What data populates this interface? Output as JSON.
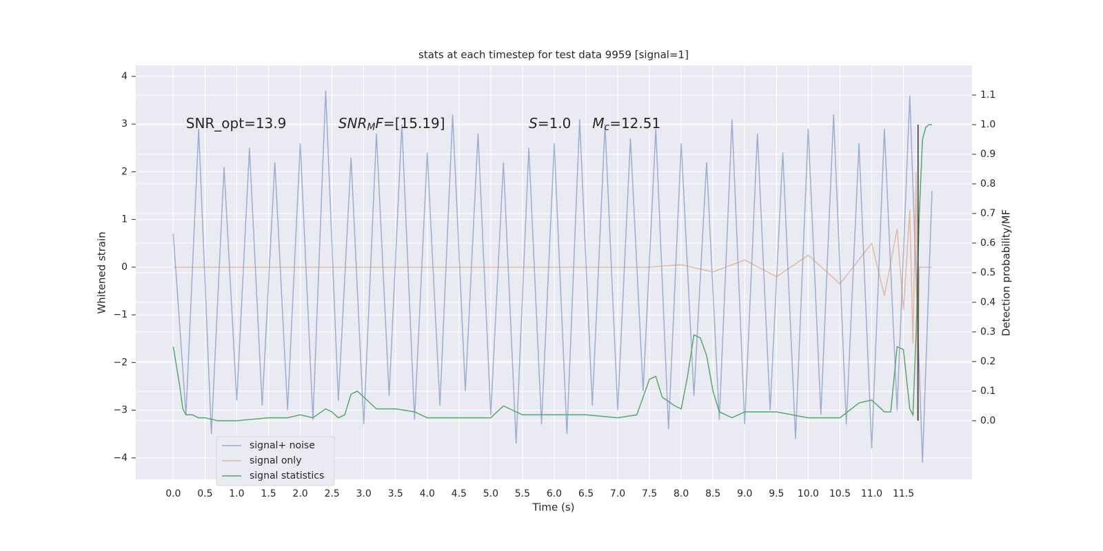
{
  "chart_data": {
    "type": "line",
    "title": "stats at each timestep for test data 9959 [signal=1]",
    "xlabel": "Time (s)",
    "ylabel": "Whitened strain",
    "y2label": "Detection probability/MF",
    "xlim": [
      -0.59,
      12.58
    ],
    "ylim": [
      -4.45,
      4.23
    ],
    "y2lim": [
      -0.198,
      1.2
    ],
    "xticks": [
      {
        "value": 0,
        "label": "0.0"
      },
      {
        "value": 0.5,
        "label": "0.5"
      },
      {
        "value": 1,
        "label": "1.0"
      },
      {
        "value": 1.5,
        "label": "1.5"
      },
      {
        "value": 2,
        "label": "2.0"
      },
      {
        "value": 2.5,
        "label": "2.5"
      },
      {
        "value": 3,
        "label": "3.0"
      },
      {
        "value": 3.5,
        "label": "3.5"
      },
      {
        "value": 4,
        "label": "4.0"
      },
      {
        "value": 4.5,
        "label": "4.5"
      },
      {
        "value": 5,
        "label": "5.0"
      },
      {
        "value": 5.5,
        "label": "5.5"
      },
      {
        "value": 6,
        "label": "6.0"
      },
      {
        "value": 6.5,
        "label": "6.5"
      },
      {
        "value": 7,
        "label": "7.0"
      },
      {
        "value": 7.5,
        "label": "7.5"
      },
      {
        "value": 8,
        "label": "8.0"
      },
      {
        "value": 8.5,
        "label": "8.5"
      },
      {
        "value": 9,
        "label": "9.0"
      },
      {
        "value": 9.5,
        "label": "9.5"
      },
      {
        "value": 10,
        "label": "10.0"
      },
      {
        "value": 10.5,
        "label": "10.5"
      },
      {
        "value": 11,
        "label": "11.0"
      },
      {
        "value": 11.5,
        "label": "11.5"
      }
    ],
    "yticks": [
      {
        "value": -4,
        "label": "−4"
      },
      {
        "value": -3,
        "label": "−3"
      },
      {
        "value": -2,
        "label": "−2"
      },
      {
        "value": -1,
        "label": "−1"
      },
      0,
      1,
      2,
      3,
      4
    ],
    "y2ticks": [
      {
        "value": 0,
        "label": "0.0"
      },
      {
        "value": 0.1,
        "label": "0.1"
      },
      {
        "value": 0.2,
        "label": "0.2"
      },
      {
        "value": 0.3,
        "label": "0.3"
      },
      {
        "value": 0.4,
        "label": "0.4"
      },
      {
        "value": 0.5,
        "label": "0.5"
      },
      {
        "value": 0.6,
        "label": "0.6"
      },
      {
        "value": 0.7,
        "label": "0.7"
      },
      {
        "value": 0.8,
        "label": "0.8"
      },
      {
        "value": 0.9,
        "label": "0.9"
      },
      {
        "value": 1,
        "label": "1.0"
      },
      {
        "value": 1.1,
        "label": "1.1"
      }
    ],
    "grid": true,
    "legend": "lower left",
    "series": [
      {
        "name": "signal+ noise",
        "color": "#4c72b0",
        "alpha": 0.5,
        "x": [
          0,
          0.2,
          0.4,
          0.6,
          0.8,
          1,
          1.2,
          1.4,
          1.6,
          1.8,
          2,
          2.2,
          2.4,
          2.6,
          2.8,
          3,
          3.2,
          3.4,
          3.6,
          3.8,
          4,
          4.2,
          4.4,
          4.6,
          4.8,
          5,
          5.2,
          5.4,
          5.6,
          5.8,
          6,
          6.2,
          6.4,
          6.6,
          6.8,
          7,
          7.2,
          7.4,
          7.6,
          7.8,
          8,
          8.2,
          8.4,
          8.6,
          8.8,
          9,
          9.2,
          9.4,
          9.6,
          9.8,
          10,
          10.2,
          10.4,
          10.6,
          10.8,
          11,
          11.2,
          11.4,
          11.6,
          11.8,
          11.95
        ],
        "values": [
          0.7,
          -3.1,
          2.9,
          -3.5,
          2.1,
          -2.8,
          2.5,
          -2.9,
          2.2,
          -3.0,
          2.6,
          -3.2,
          3.7,
          -2.8,
          2.3,
          -3.3,
          2.8,
          -2.7,
          3.0,
          -3.2,
          2.4,
          -2.9,
          3.2,
          -2.6,
          2.8,
          -3.1,
          2.2,
          -3.7,
          2.5,
          -3.3,
          2.6,
          -3.5,
          3.1,
          -2.9,
          3.0,
          -3.0,
          2.7,
          -2.6,
          2.9,
          -3.4,
          2.6,
          -2.7,
          2.2,
          -3.2,
          3.1,
          -3.3,
          2.8,
          -3.0,
          2.4,
          -3.6,
          2.9,
          -3.1,
          3.2,
          -3.3,
          2.6,
          -3.8,
          2.9,
          -3.0,
          3.6,
          -4.1,
          1.6
        ]
      },
      {
        "name": "signal only",
        "color": "#dd8452",
        "alpha": 0.5,
        "x": [
          0,
          7.5,
          8.0,
          8.5,
          9.0,
          9.5,
          10.0,
          10.5,
          11.0,
          11.2,
          11.4,
          11.5,
          11.6,
          11.65,
          11.7,
          11.72,
          11.75,
          11.95
        ],
        "values": [
          0,
          0,
          0.05,
          -0.1,
          0.15,
          -0.2,
          0.25,
          -0.35,
          0.5,
          -0.6,
          0.8,
          -0.9,
          1.2,
          -1.6,
          2.0,
          -3.2,
          0,
          0
        ]
      },
      {
        "name": "signal statistics",
        "color": "#55a868",
        "alpha": 1,
        "axis": "y2",
        "x": [
          0,
          0.1,
          0.15,
          0.2,
          0.3,
          0.4,
          0.5,
          0.7,
          1.0,
          1.5,
          1.8,
          2.0,
          2.2,
          2.4,
          2.5,
          2.6,
          2.7,
          2.8,
          2.9,
          3.0,
          3.2,
          3.5,
          3.8,
          4.0,
          4.5,
          5.0,
          5.1,
          5.2,
          5.5,
          6.0,
          6.5,
          7.0,
          7.3,
          7.4,
          7.5,
          7.6,
          7.7,
          7.9,
          8.0,
          8.1,
          8.2,
          8.3,
          8.4,
          8.5,
          8.6,
          8.8,
          9.0,
          9.5,
          10.0,
          10.5,
          10.8,
          11.0,
          11.2,
          11.3,
          11.4,
          11.5,
          11.6,
          11.65,
          11.7,
          11.75,
          11.8,
          11.85,
          11.9,
          11.95
        ],
        "values": [
          0.25,
          0.12,
          0.04,
          0.02,
          0.02,
          0.01,
          0.01,
          0.0,
          0.0,
          0.01,
          0.01,
          0.02,
          0.01,
          0.04,
          0.03,
          0.01,
          0.02,
          0.09,
          0.1,
          0.08,
          0.04,
          0.04,
          0.03,
          0.01,
          0.01,
          0.01,
          0.03,
          0.05,
          0.02,
          0.02,
          0.02,
          0.01,
          0.02,
          0.08,
          0.14,
          0.15,
          0.08,
          0.05,
          0.04,
          0.15,
          0.29,
          0.28,
          0.22,
          0.1,
          0.03,
          0.01,
          0.03,
          0.03,
          0.01,
          0.01,
          0.06,
          0.07,
          0.03,
          0.03,
          0.25,
          0.24,
          0.04,
          0.02,
          0.3,
          0.7,
          0.95,
          0.99,
          1.0,
          1.0
        ]
      }
    ],
    "vline": {
      "x": 11.73,
      "y2": [
        0,
        1
      ],
      "color": "#333333"
    },
    "annotations": [
      {
        "x": 0.2,
        "y": 3.0,
        "parts": [
          {
            "text": "SNR_opt=13.9"
          }
        ]
      },
      {
        "x": 2.6,
        "y": 3.0,
        "parts": [
          {
            "text": "SNR",
            "style": "italic"
          },
          {
            "text": "M",
            "style": "sub"
          },
          {
            "text": "F",
            "style": "italic"
          },
          {
            "text": "=[15.19]"
          }
        ]
      },
      {
        "x": 5.6,
        "y": 3.0,
        "parts": [
          {
            "text": "S",
            "style": "italic"
          },
          {
            "text": "=1.0"
          }
        ]
      },
      {
        "x": 6.6,
        "y": 3.0,
        "parts": [
          {
            "text": "M",
            "style": "italic"
          },
          {
            "text": "c",
            "style": "sub"
          },
          {
            "text": "=12.51"
          }
        ]
      }
    ]
  }
}
